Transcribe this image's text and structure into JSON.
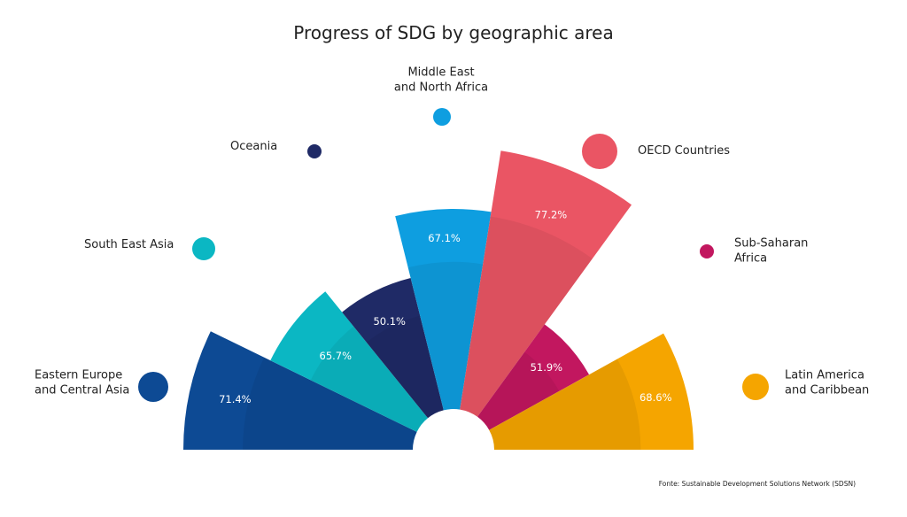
{
  "chart_data": {
    "type": "polar-bar",
    "title": "Progress of SDG by geographic area",
    "source": "Fonte: Sustainable Development Solutions Network (SDSN)",
    "series": [
      {
        "category": [
          "Eastern Europe",
          "and Central Asia"
        ],
        "value": 71.4,
        "label": "71.4%",
        "color": "#0d4a94"
      },
      {
        "category": [
          "South East Asia"
        ],
        "value": 65.7,
        "label": "65.7%",
        "color": "#0bb7c3"
      },
      {
        "category": [
          "Oceania"
        ],
        "value": 50.1,
        "label": "50.1%",
        "color": "#1f2a66"
      },
      {
        "category": [
          "Middle East",
          "and North Africa"
        ],
        "value": 67.1,
        "label": "67.1%",
        "color": "#0e9ee0"
      },
      {
        "category": [
          "OECD Countries"
        ],
        "value": 77.2,
        "label": "77.2%",
        "color": "#ea5564"
      },
      {
        "category": [
          "Sub-Saharan",
          "Africa"
        ],
        "value": 51.9,
        "label": "51.9%",
        "color": "#c2175f"
      },
      {
        "category": [
          "Latin America",
          "and Caribbean"
        ],
        "value": 68.6,
        "label": "68.6%",
        "color": "#f5a500"
      }
    ]
  }
}
